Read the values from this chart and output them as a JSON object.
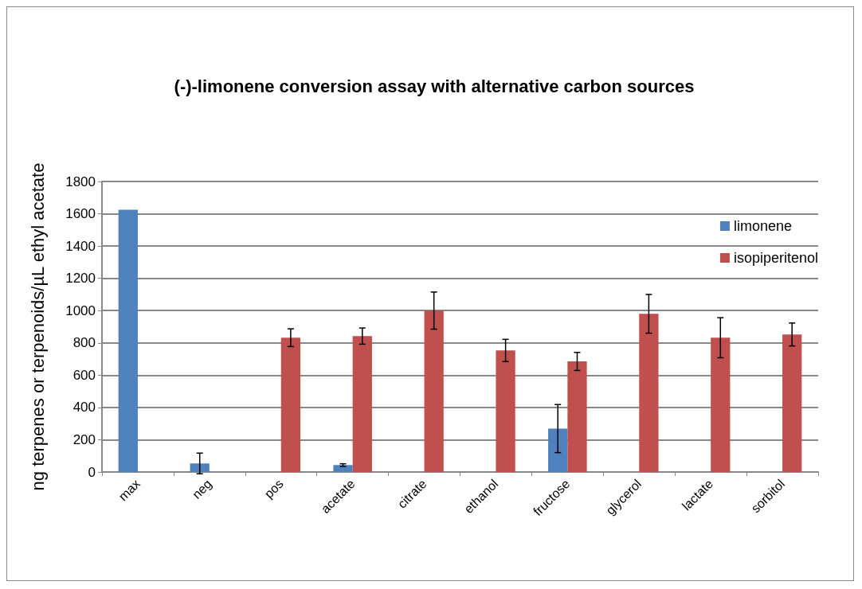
{
  "chart_data": {
    "type": "bar",
    "title": "(-)-limonene conversion assay with alternative carbon sources",
    "ylabel": "ng terpenes or terpenoids/µL ethyl acetate",
    "categories": [
      "max",
      "neg",
      "pos",
      "acetate",
      "citrate",
      "ethanol",
      "fructose",
      "glycerol",
      "lactate",
      "sorbitol"
    ],
    "series": [
      {
        "name": "limonene",
        "color": "#4f81bd",
        "values": [
          1625,
          53,
          null,
          43,
          null,
          null,
          269,
          null,
          null,
          null
        ],
        "errors": [
          null,
          64,
          null,
          8,
          null,
          null,
          149,
          null,
          null,
          null
        ]
      },
      {
        "name": "isopiperitenol",
        "color": "#c0504d",
        "values": [
          null,
          null,
          832,
          842,
          1000,
          753,
          685,
          980,
          832,
          852
        ],
        "errors": [
          null,
          null,
          55,
          50,
          115,
          69,
          56,
          120,
          124,
          71
        ]
      }
    ],
    "ylim": [
      0,
      1800
    ],
    "yticks": [
      0,
      200,
      400,
      600,
      800,
      1000,
      1200,
      1400,
      1600,
      1800
    ],
    "grid": "y",
    "legend": "top right"
  }
}
